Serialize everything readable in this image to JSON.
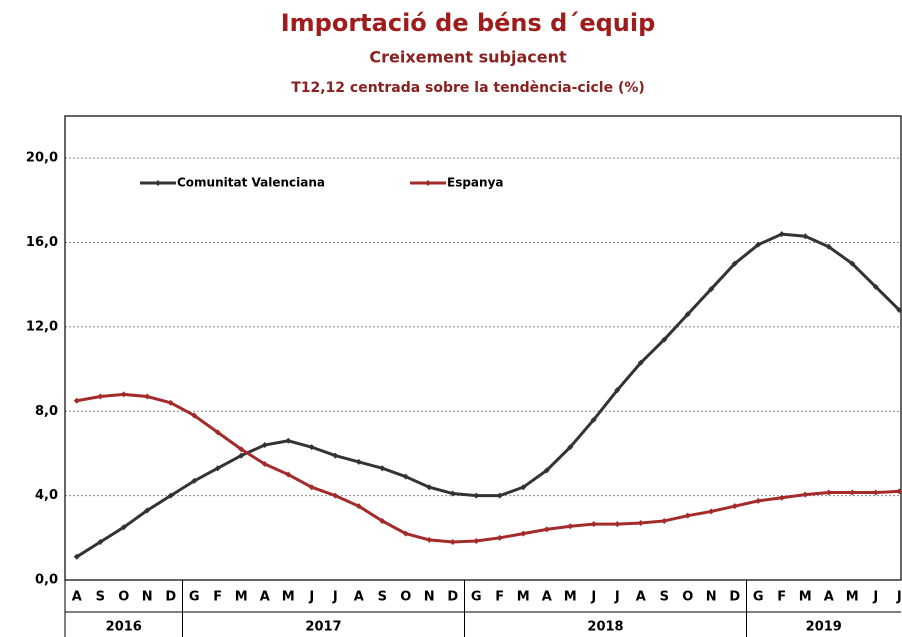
{
  "chart_data": {
    "type": "line",
    "title": "Importació de béns d´equip",
    "subtitle": "Creixement subjacent",
    "subtitle2": "T12,12 centrada sobre la tendència-cicle (%)",
    "categories": [
      "A",
      "S",
      "O",
      "N",
      "D",
      "G",
      "F",
      "M",
      "A",
      "M",
      "J",
      "J",
      "A",
      "S",
      "O",
      "N",
      "D",
      "G",
      "F",
      "M",
      "A",
      "M",
      "J",
      "J",
      "A",
      "S",
      "O",
      "N",
      "D",
      "G",
      "F",
      "M",
      "A",
      "M",
      "J",
      "J"
    ],
    "years": [
      "2016",
      "2017",
      "2018",
      "2019"
    ],
    "series": [
      {
        "name": "Comunitat Valenciana",
        "color": "#333333",
        "values": [
          1.1,
          1.8,
          2.5,
          3.3,
          4.0,
          4.7,
          5.3,
          5.9,
          6.4,
          6.6,
          6.3,
          5.9,
          5.6,
          5.3,
          4.9,
          4.4,
          4.1,
          4.0,
          4.0,
          4.4,
          5.2,
          6.3,
          7.6,
          9.0,
          10.3,
          11.4,
          12.6,
          13.8,
          15.0,
          15.9,
          16.4,
          16.3,
          15.8,
          15.0,
          13.9,
          12.8
        ]
      },
      {
        "name": "Espanya",
        "color": "#a52a2a",
        "values": [
          8.5,
          8.7,
          8.8,
          8.7,
          8.4,
          7.8,
          7.0,
          6.2,
          5.5,
          5.0,
          4.4,
          4.0,
          3.5,
          2.8,
          2.2,
          1.9,
          1.8,
          1.85,
          2.0,
          2.2,
          2.4,
          2.55,
          2.65,
          2.65,
          2.7,
          2.8,
          3.05,
          3.25,
          3.5,
          3.75,
          3.9,
          4.05,
          4.15,
          4.15,
          4.15,
          4.2
        ]
      }
    ],
    "ylim": [
      0,
      22
    ],
    "yticks": [
      {
        "value": 0,
        "label": "0,0"
      },
      {
        "value": 4,
        "label": "4,0"
      },
      {
        "value": 8,
        "label": "8,0"
      },
      {
        "value": 12,
        "label": "12,0"
      },
      {
        "value": 16,
        "label": "16,0"
      },
      {
        "value": 20,
        "label": "20,0"
      }
    ],
    "grid": true,
    "legend": "top-left"
  }
}
